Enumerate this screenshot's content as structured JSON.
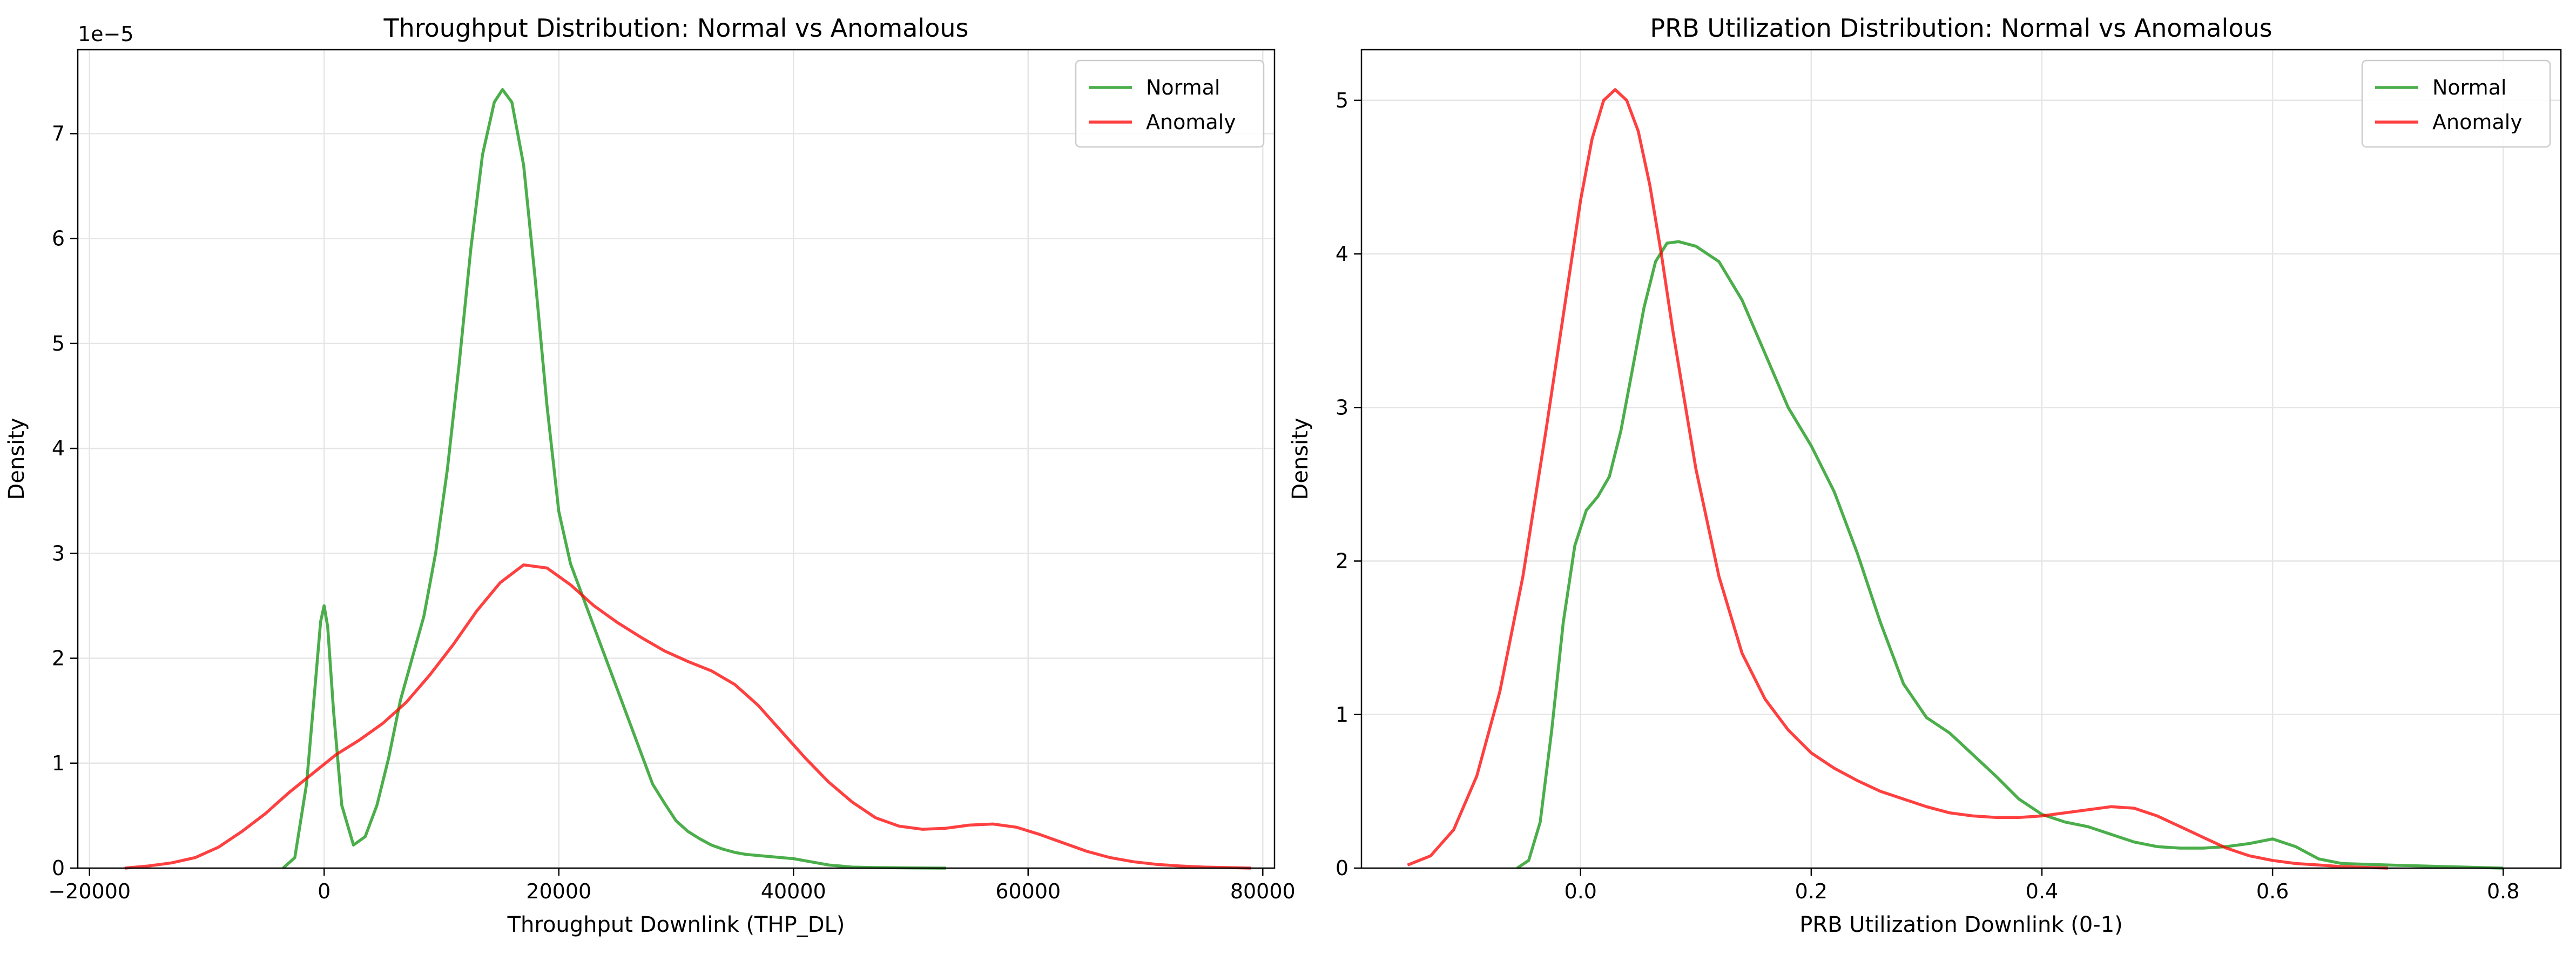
{
  "chart_data": [
    {
      "type": "line",
      "title": "Throughput Distribution: Normal vs Anomalous",
      "xlabel": "Throughput Downlink (THP_DL)",
      "ylabel": "Density",
      "offset_text": "1e−5",
      "xlim": [
        -21000,
        81000
      ],
      "ylim": [
        0,
        7.8
      ],
      "xticks": [
        -20000,
        0,
        20000,
        40000,
        60000,
        80000
      ],
      "xtick_labels": [
        "−20000",
        "0",
        "20000",
        "40000",
        "60000",
        "80000"
      ],
      "yticks": [
        0,
        1,
        2,
        3,
        4,
        5,
        6,
        7
      ],
      "ytick_labels": [
        "0",
        "1",
        "2",
        "3",
        "4",
        "5",
        "6",
        "7"
      ],
      "grid": true,
      "legend_position": "top-right",
      "series": [
        {
          "name": "Normal",
          "color": "#2ca02c",
          "x": [
            -3500,
            -2500,
            -1500,
            -800,
            -300,
            0,
            300,
            800,
            1500,
            2500,
            3500,
            4500,
            5500,
            6500,
            7500,
            8500,
            9500,
            10500,
            11500,
            12500,
            13500,
            14500,
            15200,
            16000,
            17000,
            18000,
            19000,
            20000,
            21000,
            22000,
            23000,
            24000,
            25000,
            26000,
            27000,
            28000,
            29000,
            30000,
            31000,
            32000,
            33000,
            34000,
            35000,
            36000,
            37000,
            38000,
            39000,
            40000,
            41000,
            42000,
            43000,
            44000,
            45000,
            47000,
            50000,
            53000
          ],
          "y": [
            0.0,
            0.1,
            0.8,
            1.7,
            2.35,
            2.5,
            2.3,
            1.5,
            0.6,
            0.22,
            0.3,
            0.6,
            1.05,
            1.6,
            2.0,
            2.4,
            3.0,
            3.8,
            4.8,
            5.9,
            6.8,
            7.3,
            7.42,
            7.3,
            6.7,
            5.6,
            4.4,
            3.4,
            2.9,
            2.6,
            2.3,
            2.0,
            1.7,
            1.4,
            1.1,
            0.8,
            0.62,
            0.45,
            0.35,
            0.28,
            0.22,
            0.18,
            0.15,
            0.13,
            0.12,
            0.11,
            0.1,
            0.09,
            0.07,
            0.05,
            0.03,
            0.02,
            0.01,
            0.005,
            0.002,
            0.0
          ]
        },
        {
          "name": "Anomaly",
          "color": "#ff0000",
          "x": [
            -17000,
            -15000,
            -13000,
            -11000,
            -9000,
            -7000,
            -5000,
            -3000,
            -1000,
            1000,
            3000,
            5000,
            7000,
            9000,
            11000,
            13000,
            15000,
            17000,
            19000,
            21000,
            23000,
            25000,
            27000,
            29000,
            31000,
            33000,
            35000,
            37000,
            39000,
            41000,
            43000,
            45000,
            47000,
            49000,
            51000,
            53000,
            55000,
            57000,
            59000,
            61000,
            63000,
            65000,
            67000,
            69000,
            71000,
            73000,
            75000,
            77000,
            79000
          ],
          "y": [
            0.0,
            0.02,
            0.05,
            0.1,
            0.2,
            0.35,
            0.52,
            0.72,
            0.9,
            1.08,
            1.22,
            1.38,
            1.58,
            1.84,
            2.13,
            2.45,
            2.72,
            2.89,
            2.86,
            2.7,
            2.5,
            2.34,
            2.2,
            2.07,
            1.97,
            1.88,
            1.75,
            1.55,
            1.3,
            1.05,
            0.82,
            0.63,
            0.48,
            0.4,
            0.37,
            0.38,
            0.41,
            0.42,
            0.39,
            0.32,
            0.24,
            0.16,
            0.1,
            0.06,
            0.035,
            0.02,
            0.01,
            0.005,
            0.0
          ]
        }
      ]
    },
    {
      "type": "line",
      "title": "PRB Utilization Distribution: Normal vs Anomalous",
      "xlabel": "PRB Utilization Downlink (0-1)",
      "ylabel": "Density",
      "offset_text": "",
      "xlim": [
        -0.19,
        0.85
      ],
      "ylim": [
        0,
        5.33
      ],
      "xticks": [
        0.0,
        0.2,
        0.4,
        0.6,
        0.8
      ],
      "xtick_labels": [
        "0.0",
        "0.2",
        "0.4",
        "0.6",
        "0.8"
      ],
      "yticks": [
        0,
        1,
        2,
        3,
        4,
        5
      ],
      "ytick_labels": [
        "0",
        "1",
        "2",
        "3",
        "4",
        "5"
      ],
      "grid": true,
      "legend_position": "top-right",
      "series": [
        {
          "name": "Normal",
          "color": "#2ca02c",
          "x": [
            -0.055,
            -0.045,
            -0.035,
            -0.025,
            -0.015,
            -0.005,
            0.005,
            0.015,
            0.025,
            0.035,
            0.045,
            0.055,
            0.065,
            0.075,
            0.085,
            0.1,
            0.12,
            0.14,
            0.16,
            0.18,
            0.2,
            0.22,
            0.24,
            0.26,
            0.28,
            0.3,
            0.32,
            0.34,
            0.36,
            0.38,
            0.4,
            0.42,
            0.44,
            0.46,
            0.48,
            0.5,
            0.52,
            0.54,
            0.56,
            0.58,
            0.6,
            0.62,
            0.64,
            0.66,
            0.7,
            0.75,
            0.8
          ],
          "y": [
            0.0,
            0.05,
            0.3,
            0.9,
            1.6,
            2.1,
            2.33,
            2.42,
            2.55,
            2.85,
            3.25,
            3.65,
            3.95,
            4.07,
            4.08,
            4.05,
            3.95,
            3.7,
            3.35,
            3.0,
            2.75,
            2.45,
            2.05,
            1.6,
            1.2,
            0.98,
            0.88,
            0.74,
            0.6,
            0.45,
            0.35,
            0.3,
            0.27,
            0.22,
            0.17,
            0.14,
            0.13,
            0.13,
            0.14,
            0.16,
            0.19,
            0.14,
            0.06,
            0.03,
            0.02,
            0.01,
            0.0
          ]
        },
        {
          "name": "Anomaly",
          "color": "#ff0000",
          "x": [
            -0.15,
            -0.13,
            -0.11,
            -0.09,
            -0.07,
            -0.05,
            -0.03,
            -0.01,
            0.0,
            0.01,
            0.02,
            0.03,
            0.04,
            0.05,
            0.06,
            0.07,
            0.08,
            0.1,
            0.12,
            0.14,
            0.16,
            0.18,
            0.2,
            0.22,
            0.24,
            0.26,
            0.28,
            0.3,
            0.32,
            0.34,
            0.36,
            0.38,
            0.4,
            0.42,
            0.44,
            0.46,
            0.48,
            0.5,
            0.52,
            0.54,
            0.56,
            0.58,
            0.6,
            0.62,
            0.64,
            0.66,
            0.68,
            0.7
          ],
          "y": [
            0.02,
            0.08,
            0.25,
            0.6,
            1.15,
            1.9,
            2.85,
            3.85,
            4.35,
            4.75,
            5.0,
            5.07,
            5.0,
            4.8,
            4.45,
            4.0,
            3.5,
            2.6,
            1.9,
            1.4,
            1.1,
            0.9,
            0.75,
            0.65,
            0.57,
            0.5,
            0.45,
            0.4,
            0.36,
            0.34,
            0.33,
            0.33,
            0.34,
            0.36,
            0.38,
            0.4,
            0.39,
            0.34,
            0.27,
            0.2,
            0.13,
            0.08,
            0.05,
            0.03,
            0.02,
            0.01,
            0.005,
            0.0
          ]
        }
      ]
    }
  ]
}
